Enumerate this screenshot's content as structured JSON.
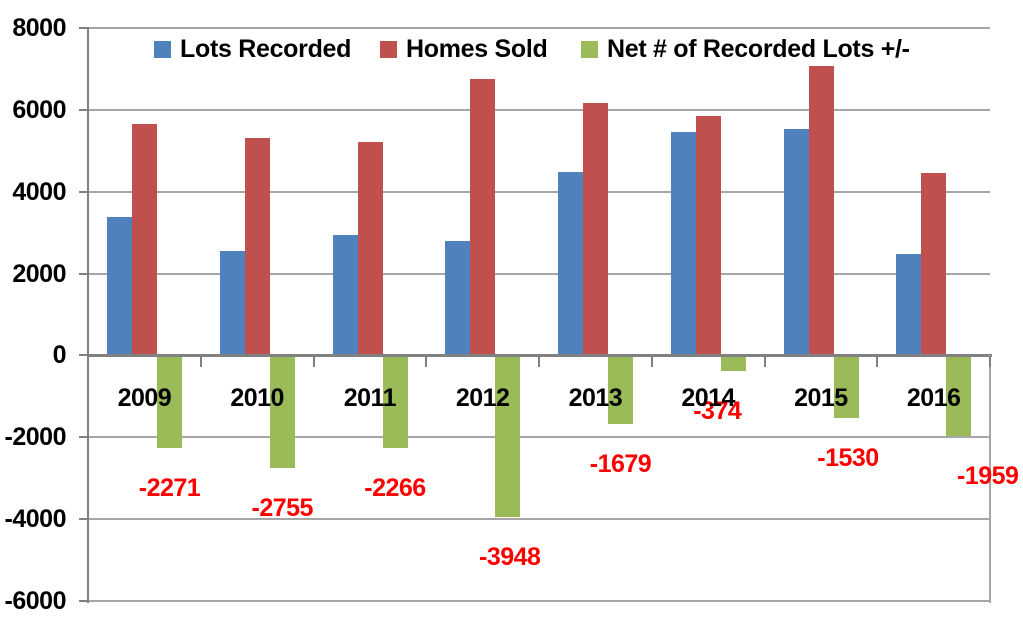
{
  "chart_data": {
    "type": "bar",
    "title": "",
    "categories": [
      "2009",
      "2010",
      "2011",
      "2012",
      "2013",
      "2014",
      "2015",
      "2016"
    ],
    "series": [
      {
        "name": "Lots Recorded",
        "color": "#4F81BD",
        "values": [
          3380,
          2550,
          2950,
          2800,
          4490,
          5470,
          5540,
          2490
        ]
      },
      {
        "name": "Homes Sold",
        "color": "#C0504D",
        "values": [
          5651,
          5305,
          5216,
          6748,
          6169,
          5844,
          7070,
          4449
        ]
      },
      {
        "name": "Net # of Recorded Lots +/-",
        "color": "#9BBB59",
        "values": [
          -2271,
          -2755,
          -2266,
          -3948,
          -1679,
          -374,
          -1530,
          -1959
        ],
        "data_labels": [
          "-2271",
          "-2755",
          "-2266",
          "-3948",
          "-1679",
          "-374",
          "-1530",
          "-1959"
        ],
        "label_color": "#FF0000"
      }
    ],
    "y_axis": {
      "min": -6000,
      "max": 8000,
      "step": 2000,
      "tick_labels": [
        "8000",
        "6000",
        "4000",
        "2000",
        "0",
        "-2000",
        "-4000",
        "-6000"
      ]
    },
    "legend_position": "top",
    "gridlines": true,
    "colors": {
      "gridline": "#A6A6A6",
      "axis": "#808080",
      "background": "#FFFFFF",
      "text": "#000000"
    }
  }
}
